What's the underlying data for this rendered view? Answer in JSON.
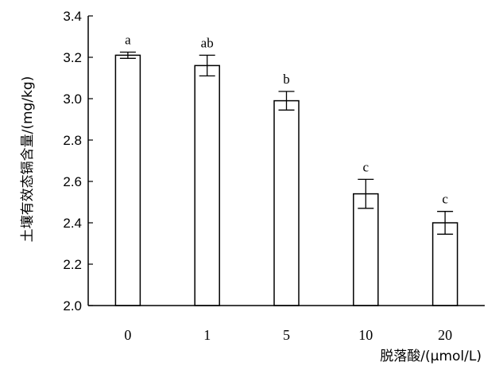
{
  "chart_data": {
    "type": "bar",
    "title": "",
    "xlabel": "脱落酸/(μmol/L)",
    "ylabel": "土壤有效态镉含量/(mg/kg)",
    "categories": [
      "0",
      "1",
      "5",
      "10",
      "20"
    ],
    "values": [
      3.21,
      3.16,
      2.99,
      2.54,
      2.4
    ],
    "error": [
      0.015,
      0.05,
      0.045,
      0.07,
      0.055
    ],
    "significance_labels": [
      "a",
      "ab",
      "b",
      "c",
      "c"
    ],
    "ylim": [
      2.0,
      3.4
    ],
    "yticks": [
      "2.0",
      "2.2",
      "2.4",
      "2.6",
      "2.8",
      "3.0",
      "3.2",
      "3.4"
    ],
    "grid": false,
    "legend": "none",
    "colors": {
      "bar_fill": "#ffffff",
      "bar_stroke": "#000000",
      "axis": "#000000"
    }
  }
}
